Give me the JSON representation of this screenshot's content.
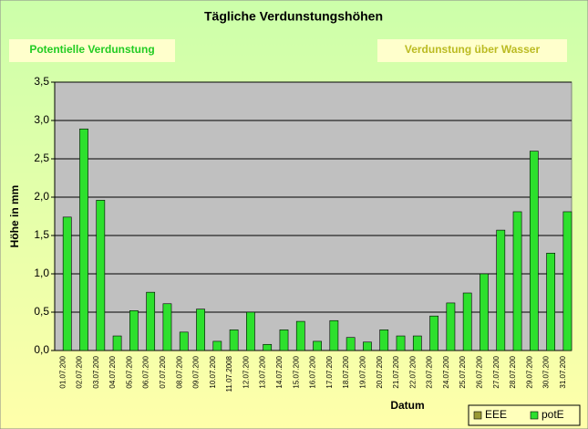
{
  "buttons": [
    "Potentielle Verdunstung",
    "Verdunstung über Wasser"
  ],
  "chart_data": {
    "type": "bar",
    "title": "Tägliche Verdunstungshöhen",
    "x_label": "Datum",
    "y_label": "Höhe in mm",
    "categories": [
      "01.07.200",
      "02.07.200",
      "03.07.200",
      "04.07.200",
      "05.07.200",
      "06.07.200",
      "07.07.200",
      "08.07.200",
      "09.07.200",
      "10.07.200",
      "11.07.2008",
      "12.07.200",
      "13.07.200",
      "14.07.200",
      "15.07.200",
      "16.07.200",
      "17.07.200",
      "18.07.200",
      "19.07.200",
      "20.07.200",
      "21.07.200",
      "22.07.200",
      "23.07.200",
      "24.07.200",
      "25.07.200",
      "26.07.200",
      "27.07.200",
      "28.07.200",
      "29.07.200",
      "30.07.200",
      "31.07.200"
    ],
    "series": [
      {
        "name": "EEE",
        "color": "#999933",
        "values": [
          null,
          null,
          null,
          null,
          null,
          null,
          null,
          null,
          null,
          null,
          null,
          null,
          null,
          null,
          null,
          null,
          null,
          null,
          null,
          null,
          null,
          null,
          null,
          null,
          null,
          null,
          null,
          null,
          null,
          null,
          null
        ]
      },
      {
        "name": "potE",
        "color": "#2de02d",
        "values": [
          1.74,
          2.89,
          1.96,
          0.19,
          0.52,
          0.76,
          0.61,
          0.24,
          0.54,
          0.12,
          0.27,
          0.5,
          0.08,
          0.27,
          0.38,
          0.12,
          0.39,
          0.17,
          0.11,
          0.27,
          0.19,
          0.19,
          0.45,
          0.62,
          0.75,
          1.0,
          1.57,
          1.81,
          2.6,
          1.27,
          1.81
        ]
      }
    ],
    "ylim": [
      0,
      3.5
    ],
    "yticks": [
      {
        "value": 0,
        "label": "0,0"
      },
      {
        "value": 0.5,
        "label": "0,5"
      },
      {
        "value": 1,
        "label": "1,0"
      },
      {
        "value": 1.5,
        "label": "1,5"
      },
      {
        "value": 2,
        "label": "2,0"
      },
      {
        "value": 2.5,
        "label": "2,5"
      },
      {
        "value": 3,
        "label": "3,0"
      },
      {
        "value": 3.5,
        "label": "3,5"
      }
    ],
    "grid": true,
    "legend": "bottom-right"
  }
}
